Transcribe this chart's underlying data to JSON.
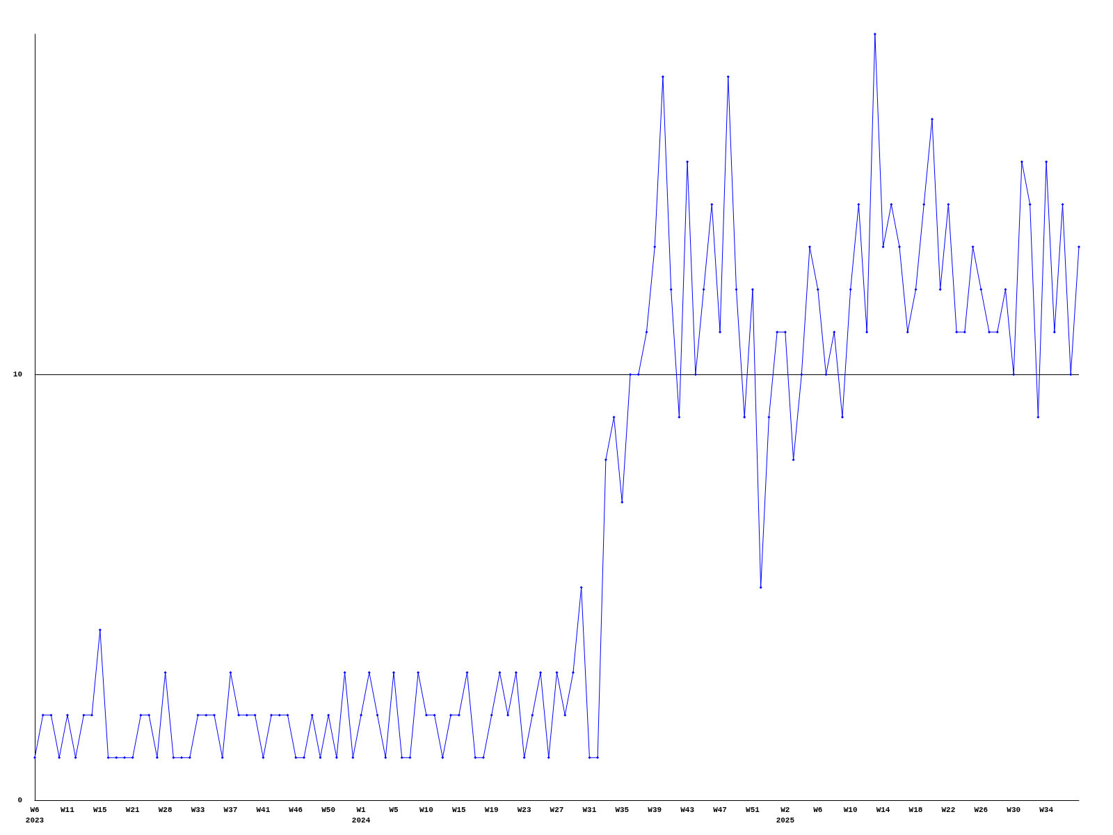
{
  "chart_data": {
    "type": "line",
    "categories": [
      "W6\n2023",
      null,
      null,
      null,
      "W11",
      null,
      null,
      null,
      "W15",
      null,
      null,
      null,
      "W21",
      null,
      null,
      null,
      "W28",
      null,
      null,
      null,
      "W33",
      null,
      null,
      null,
      "W37",
      null,
      null,
      null,
      "W41",
      null,
      null,
      null,
      "W46",
      null,
      null,
      null,
      "W50",
      null,
      null,
      null,
      "W1\n2024",
      null,
      null,
      null,
      "W5",
      null,
      null,
      null,
      "W10",
      null,
      null,
      null,
      "W15",
      null,
      null,
      null,
      "W19",
      null,
      null,
      null,
      "W23",
      null,
      null,
      null,
      "W27",
      null,
      null,
      null,
      "W31",
      null,
      null,
      null,
      "W35",
      null,
      null,
      null,
      "W39",
      null,
      null,
      null,
      "W43",
      null,
      null,
      null,
      "W47",
      null,
      null,
      null,
      "W51",
      null,
      null,
      null,
      "W2\n2025",
      null,
      null,
      null,
      "W6",
      null,
      null,
      null,
      "W10",
      null,
      null,
      null,
      "W14",
      null,
      null,
      null,
      "W18",
      null,
      null,
      null,
      "W22",
      null,
      null,
      null,
      "W26",
      null,
      null,
      null,
      "W30",
      null,
      null,
      null,
      "W34",
      null,
      null,
      null,
      null
    ],
    "series": [
      {
        "color": "#0000ff",
        "values": [
          1,
          2,
          2,
          1,
          2,
          1,
          2,
          2,
          4,
          1,
          1,
          1,
          1,
          2,
          2,
          1,
          3,
          1,
          1,
          1,
          2,
          2,
          2,
          1,
          3,
          2,
          2,
          2,
          1,
          2,
          2,
          2,
          1,
          1,
          2,
          1,
          2,
          1,
          3,
          1,
          2,
          3,
          2,
          1,
          3,
          1,
          1,
          3,
          2,
          2,
          1,
          2,
          2,
          3,
          1,
          1,
          2,
          3,
          2,
          3,
          1,
          2,
          3,
          1,
          3,
          2,
          3,
          5,
          1,
          1,
          8,
          9,
          7,
          10,
          10,
          11,
          13,
          17,
          12,
          9,
          15,
          10,
          12,
          14,
          11,
          17,
          12,
          9,
          12,
          5,
          9,
          11,
          11,
          8,
          10,
          13,
          12,
          10,
          11,
          9,
          12,
          14,
          11,
          18,
          13,
          14,
          13,
          11,
          12,
          14,
          16,
          12,
          14,
          11,
          11,
          13,
          12,
          11,
          11,
          12,
          10,
          15,
          14,
          9,
          15,
          11,
          14,
          10,
          13
        ]
      }
    ],
    "ylim": [
      0,
      18
    ],
    "yticks": [
      0,
      10
    ],
    "grid": "y",
    "marker": "diamond",
    "line_style": "solid"
  }
}
